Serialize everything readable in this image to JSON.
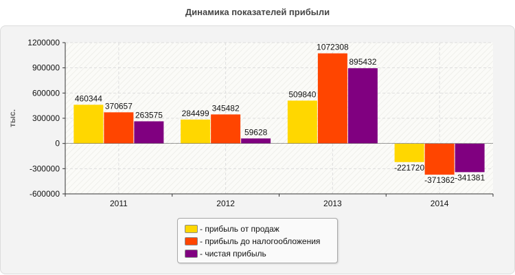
{
  "chart_data": {
    "type": "bar",
    "title": "Динамика показателей прибыли",
    "ylabel": "тыс.",
    "xlabel": "",
    "categories": [
      "2011",
      "2012",
      "2013",
      "2014"
    ],
    "ylim": [
      -600000,
      1200000
    ],
    "yticks": [
      1200000,
      900000,
      600000,
      300000,
      0,
      -300000,
      -600000
    ],
    "grid": true,
    "legend_position": "bottom",
    "series": [
      {
        "name": "- прибыль от продаж",
        "color": "#FFD700",
        "values": [
          460344,
          284499,
          509840,
          -221720
        ]
      },
      {
        "name": "- прибыль до налогообложения",
        "color": "#FF4500",
        "values": [
          370657,
          345482,
          1072308,
          -371362
        ]
      },
      {
        "name": "- чистая прибыль",
        "color": "#800080",
        "values": [
          263575,
          59628,
          895432,
          -341381
        ]
      }
    ]
  }
}
